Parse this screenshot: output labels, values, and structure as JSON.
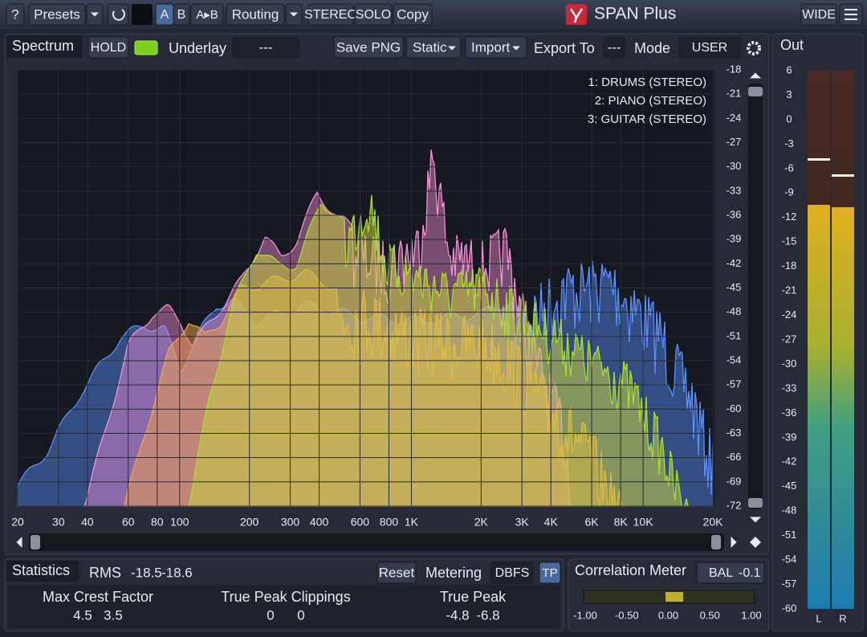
{
  "toolbar": {
    "help": "?",
    "presets": "Presets",
    "ab": [
      "A",
      "B",
      "A▸B"
    ],
    "routing": "Routing",
    "stereo": "STEREO",
    "solo": "SOLO",
    "copy": "Copy",
    "app_title": "SPAN Plus",
    "wide": "WIDE"
  },
  "spectrum_bar": {
    "title": "Spectrum",
    "hold": "HOLD",
    "underlay": "Underlay",
    "underlay_value": "---",
    "save_png": "Save PNG",
    "static": "Static",
    "import": "Import",
    "export_to": "Export To",
    "export_value": "---",
    "mode": "Mode",
    "mode_value": "USER"
  },
  "legend": [
    {
      "label": "1: DRUMS (STEREO)",
      "color": "#5a90ff"
    },
    {
      "label": "2: PIANO (STEREO)",
      "color": "#f58fd6"
    },
    {
      "label": "3: GUITAR (STEREO)",
      "color": "#f5a24c"
    }
  ],
  "freq_ticks": [
    20,
    30,
    40,
    60,
    80,
    100,
    200,
    300,
    400,
    600,
    800,
    {
      "value": 1000,
      "label": "1K"
    },
    {
      "value": 2000,
      "label": "2K"
    },
    {
      "value": 3000,
      "label": "3K"
    },
    {
      "value": 4000,
      "label": "4K"
    },
    {
      "value": 6000,
      "label": "6K"
    },
    {
      "value": 8000,
      "label": "8K"
    },
    {
      "value": 10000,
      "label": "10K"
    },
    {
      "value": 20000,
      "label": "20K"
    }
  ],
  "db_ticks": [
    -18,
    -21,
    -24,
    -27,
    -30,
    -33,
    -36,
    -39,
    -42,
    -45,
    -48,
    -51,
    -54,
    -57,
    -60,
    -63,
    -66,
    -69,
    -72
  ],
  "out": {
    "title": "Out",
    "ticks": [
      6,
      3,
      0,
      -3,
      -6,
      -9,
      -12,
      -15,
      -18,
      -21,
      -24,
      -27,
      -30,
      -33,
      -36,
      -39,
      -42,
      -45,
      -48,
      -51,
      -54,
      -57,
      -60
    ],
    "channels": [
      "L",
      "R"
    ]
  },
  "statistics": {
    "title": "Statistics",
    "rms_label": "RMS",
    "rms": [
      -18.5,
      -18.6
    ],
    "reset": "Reset",
    "metering": "Metering",
    "metering_value": "DBFS",
    "tp": "TP",
    "metrics": [
      {
        "label": "Max Crest Factor",
        "values": [
          4.5,
          3.5
        ]
      },
      {
        "label": "True Peak Clippings",
        "values": [
          0,
          0
        ]
      },
      {
        "label": "True Peak",
        "values": [
          -4.8,
          -6.8
        ]
      }
    ]
  },
  "correlation": {
    "title": "Correlation Meter",
    "bal": "BAL",
    "bal_value": -0.1,
    "ticks": [
      "-1.00",
      "-0.50",
      "0.00",
      "0.50",
      "1.00"
    ]
  }
}
